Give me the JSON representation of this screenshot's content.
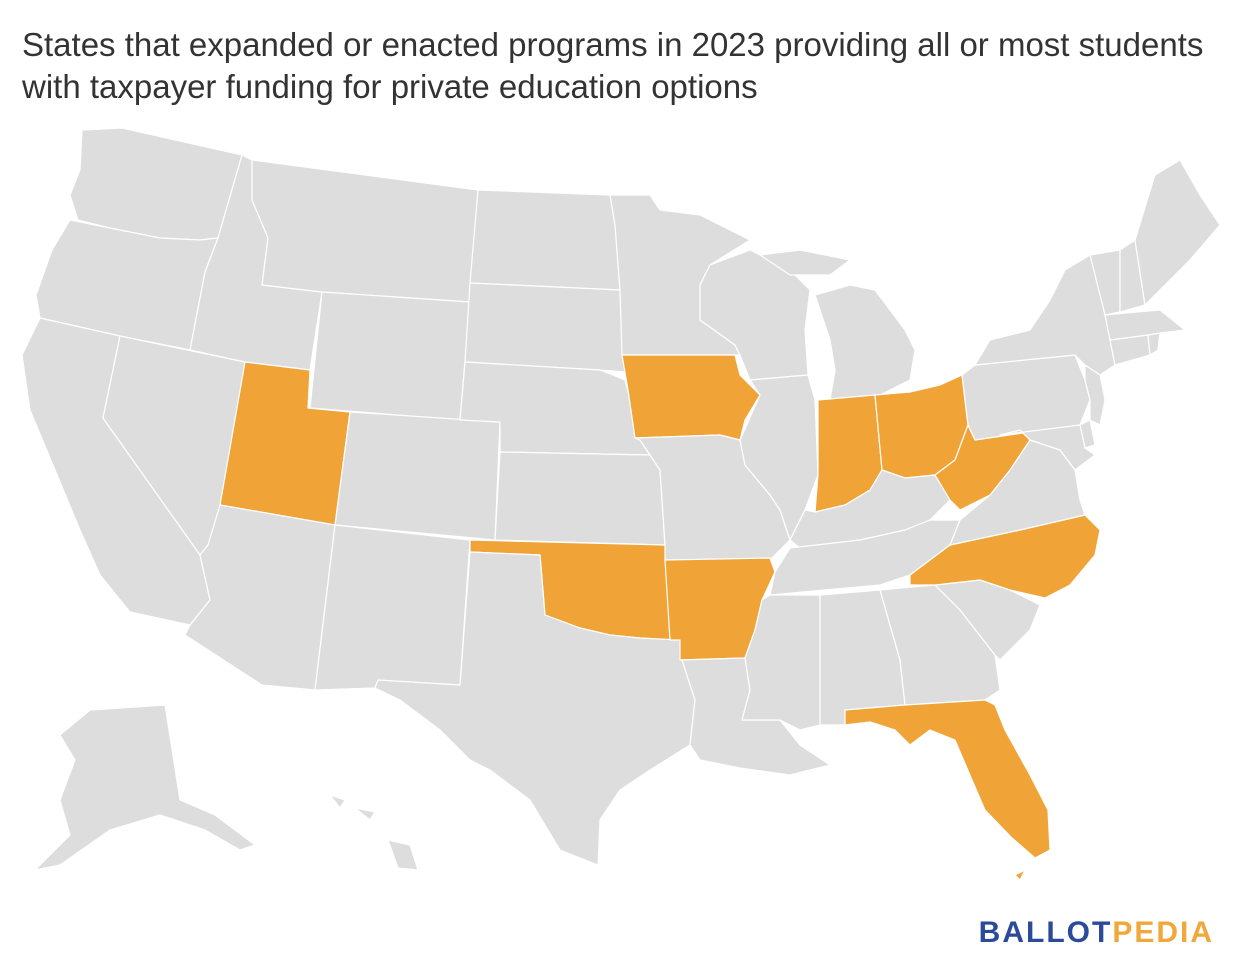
{
  "title": "States that expanded or enacted programs in 2023 providing all or most students with taxpayer funding for private education options",
  "colors": {
    "highlight": "#f0a437",
    "base": "#dddddd",
    "border": "#ffffff",
    "logo_primary": "#2c4a9a",
    "logo_accent": "#f0a83a"
  },
  "highlighted_states": [
    "UT",
    "IA",
    "OK",
    "AR",
    "IN",
    "OH",
    "WV",
    "NC",
    "FL"
  ],
  "logo": {
    "part1": "BALLOT",
    "part2": "PEDIA"
  }
}
